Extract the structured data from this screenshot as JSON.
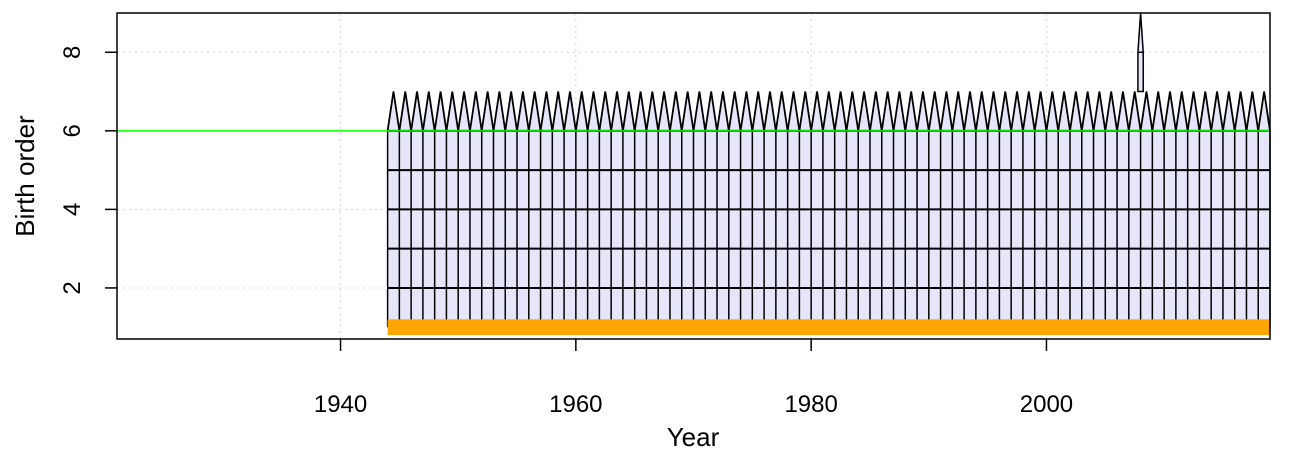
{
  "chart_data": {
    "type": "area",
    "title": "",
    "xlabel": "Year",
    "ylabel": "Birth order",
    "xlim": [
      1921,
      2019
    ],
    "ylim": [
      0.7,
      9.0
    ],
    "x_ticks": [
      1940,
      1960,
      1980,
      2000
    ],
    "y_ticks": [
      2,
      4,
      6,
      8
    ],
    "grid": true,
    "x_start": 1944,
    "x_end": 2019,
    "baseline": 1,
    "band_levels": [
      2,
      3,
      4,
      5,
      6
    ],
    "envelope_base": 6,
    "envelope_peak": 7,
    "spike": {
      "year": 2008,
      "base": 7,
      "peak": 9
    },
    "reference_line": {
      "y": 6,
      "color": "#00ff00"
    },
    "fill_color": "#e6e6fa",
    "floor_band": {
      "y0": 0.8,
      "y1": 1.2,
      "color": "#ffa500"
    }
  }
}
